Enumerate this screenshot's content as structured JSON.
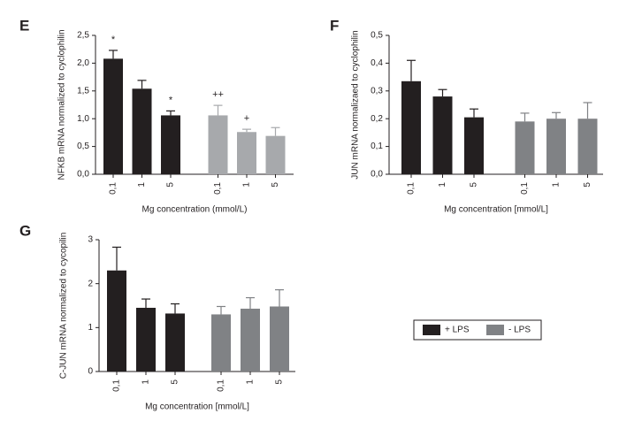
{
  "chart_data": [
    {
      "type": "bar",
      "title": "E",
      "ylabel": "NFKB mRNA normalized to cyclophilin",
      "xlabel": "Mg concentration (mmol/L)",
      "categories": [
        "0,1",
        "1",
        "5",
        "0,1",
        "1",
        "5"
      ],
      "series": [
        {
          "color": "#231f20",
          "values": [
            2.08,
            1.54,
            1.06,
            null,
            null,
            null
          ],
          "errors": [
            0.15,
            0.15,
            0.08,
            null,
            null,
            null
          ]
        },
        {
          "color": "#a7a9ac",
          "values": [
            null,
            null,
            null,
            1.06,
            0.76,
            0.69
          ],
          "errors": [
            null,
            null,
            null,
            0.18,
            0.05,
            0.15
          ]
        }
      ],
      "annotations": [
        "*",
        null,
        "*",
        "++",
        "+",
        null
      ],
      "ylim": [
        0,
        2.5
      ],
      "yticks": [
        {
          "value": 0,
          "label": "0,0"
        },
        {
          "value": 0.5,
          "label": "0,5"
        },
        {
          "value": 1,
          "label": "1,0"
        },
        {
          "value": 1.5,
          "label": "1,5"
        },
        {
          "value": 2,
          "label": "2,0"
        },
        {
          "value": 2.5,
          "label": "2,5"
        }
      ]
    },
    {
      "type": "bar",
      "title": "F",
      "ylabel": "JUN  mRNA normalizaed to cyclophilin",
      "xlabel": "Mg concentration [mmol/L]",
      "categories": [
        "0,1",
        "1",
        "5",
        "0,1",
        "1",
        "5"
      ],
      "series": [
        {
          "color": "#231f20",
          "values": [
            0.335,
            0.28,
            0.205,
            null,
            null,
            null
          ],
          "errors": [
            0.075,
            0.025,
            0.03,
            null,
            null,
            null
          ]
        },
        {
          "color": "#808285",
          "values": [
            null,
            null,
            null,
            0.19,
            0.2,
            0.2
          ],
          "errors": [
            null,
            null,
            null,
            0.03,
            0.022,
            0.058
          ]
        }
      ],
      "ylim": [
        0,
        0.5
      ],
      "yticks": [
        {
          "value": 0,
          "label": "0,0"
        },
        {
          "value": 0.1,
          "label": "0,1"
        },
        {
          "value": 0.2,
          "label": "0,2"
        },
        {
          "value": 0.3,
          "label": "0,3"
        },
        {
          "value": 0.4,
          "label": "0,4"
        },
        {
          "value": 0.5,
          "label": "0,5"
        }
      ]
    },
    {
      "type": "bar",
      "title": "G",
      "ylabel": "C-JUN mRNA normalized to cycopilin",
      "xlabel": "Mg concentration [mmol/L]",
      "categories": [
        "0,1",
        "1",
        "5",
        "0,1",
        "1",
        "5"
      ],
      "series": [
        {
          "color": "#231f20",
          "values": [
            2.3,
            1.45,
            1.32,
            null,
            null,
            null
          ],
          "errors": [
            0.53,
            0.2,
            0.22,
            null,
            null,
            null
          ]
        },
        {
          "color": "#808285",
          "values": [
            null,
            null,
            null,
            1.3,
            1.43,
            1.48
          ],
          "errors": [
            null,
            null,
            null,
            0.18,
            0.25,
            0.38
          ]
        }
      ],
      "ylim": [
        0,
        3
      ],
      "yticks": [
        0,
        1,
        2,
        3
      ]
    }
  ],
  "legend": [
    {
      "name": "+ LPS",
      "color": "#231f20"
    },
    {
      "name": "- LPS",
      "color": "#808285"
    }
  ]
}
